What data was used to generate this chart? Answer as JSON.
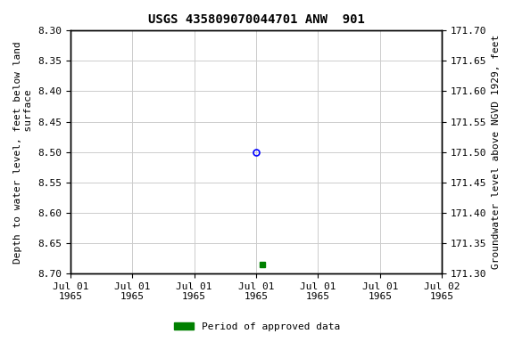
{
  "title": "USGS 435809070044701 ANW  901",
  "ylabel_left": "Depth to water level, feet below land\n surface",
  "ylabel_right": "Groundwater level above NGVD 1929, feet",
  "ylim_left": [
    8.3,
    8.7
  ],
  "ylim_right": [
    171.3,
    171.7
  ],
  "yticks_left": [
    8.3,
    8.35,
    8.4,
    8.45,
    8.5,
    8.55,
    8.6,
    8.65,
    8.7
  ],
  "yticks_right": [
    171.7,
    171.65,
    171.6,
    171.55,
    171.5,
    171.45,
    171.4,
    171.35,
    171.3
  ],
  "x_start": 0.0,
  "x_end": 6.0,
  "xtick_positions": [
    0.0,
    1.0,
    2.0,
    3.0,
    4.0,
    5.0,
    6.0
  ],
  "xtick_labels": [
    "Jul 01\n1965",
    "Jul 01\n1965",
    "Jul 01\n1965",
    "Jul 01\n1965",
    "Jul 01\n1965",
    "Jul 01\n1965",
    "Jul 02\n1965"
  ],
  "data_open_x": 3.0,
  "data_open_y": 8.5,
  "data_filled_x": 3.1,
  "data_filled_y": 8.685,
  "open_marker_color": "blue",
  "filled_marker_color": "#008000",
  "legend_label": "Period of approved data",
  "legend_color": "#008000",
  "background_color": "#ffffff",
  "grid_color": "#cccccc",
  "title_fontsize": 10,
  "axis_fontsize": 8,
  "tick_fontsize": 8
}
